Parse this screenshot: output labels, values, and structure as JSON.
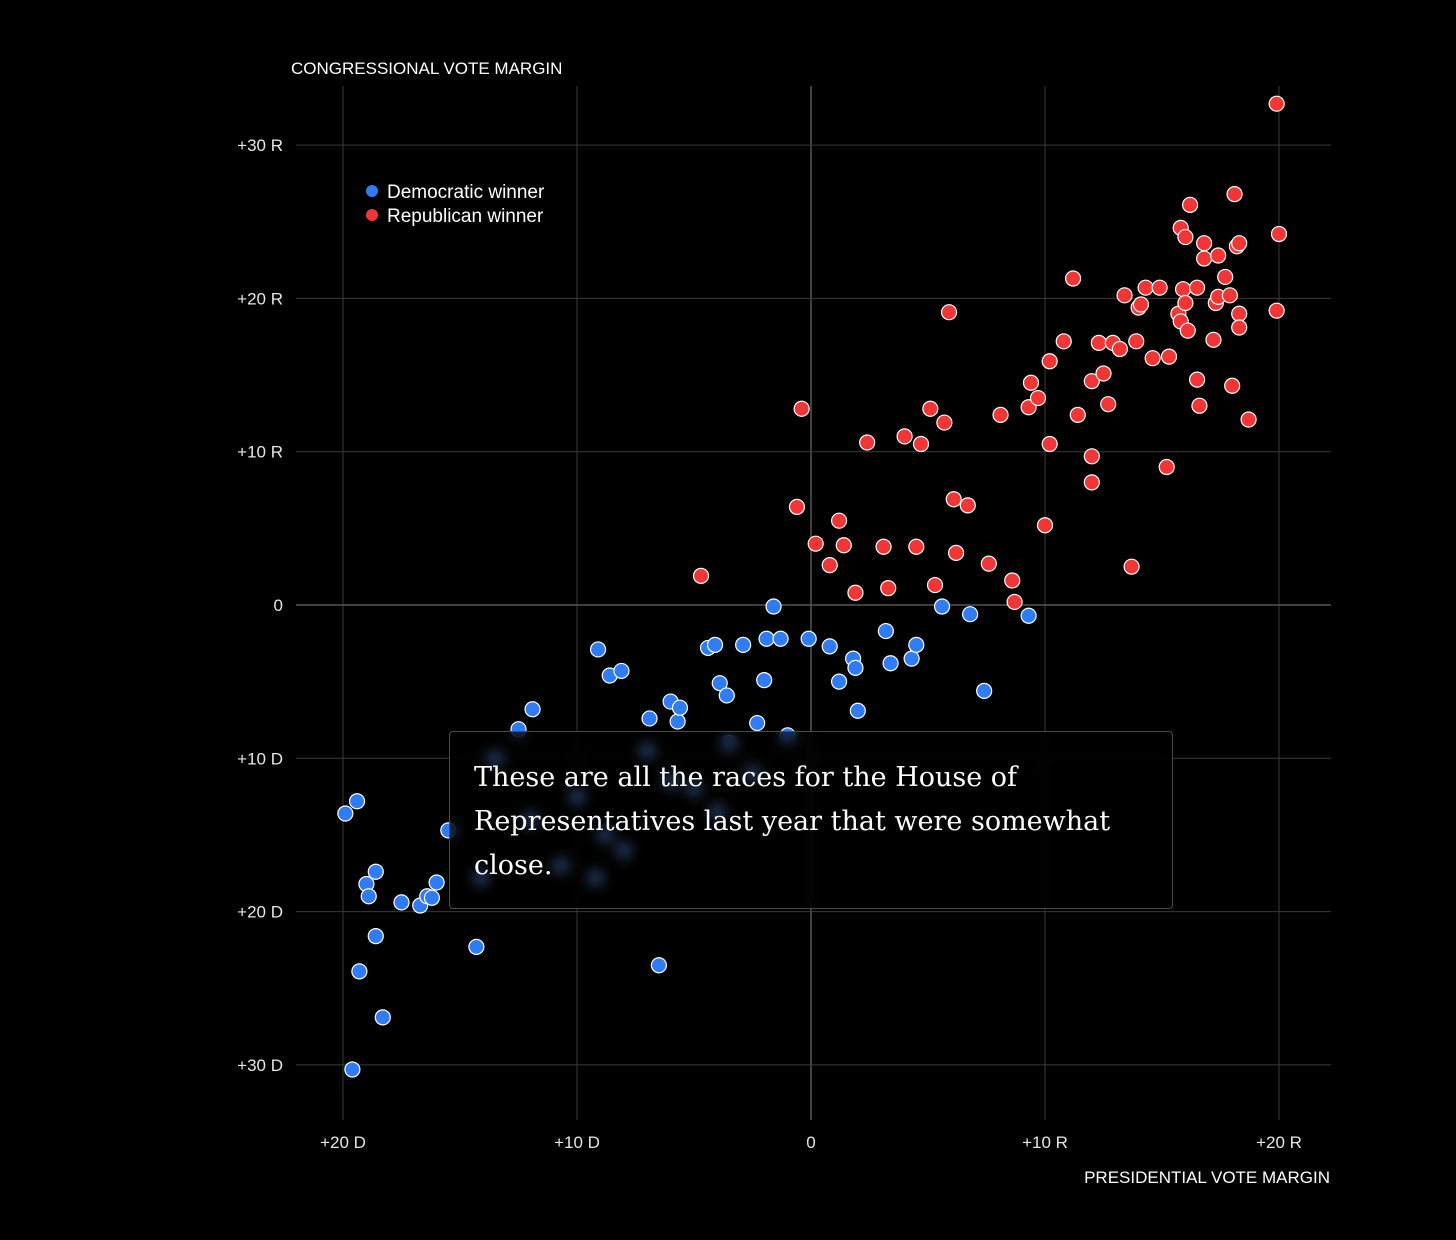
{
  "chart_data": {
    "type": "scatter",
    "title": "",
    "xlabel": "PRESIDENTIAL VOTE MARGIN",
    "ylabel": "CONGRESSIONAL VOTE MARGIN",
    "xlim": [
      -22,
      22
    ],
    "ylim": [
      -33,
      33
    ],
    "grid": true,
    "legend_position": "top-left",
    "x_ticks": [
      {
        "value": -20,
        "label": "+20 D"
      },
      {
        "value": -10,
        "label": "+10 D"
      },
      {
        "value": 0,
        "label": "0"
      },
      {
        "value": 10,
        "label": "+10 R"
      },
      {
        "value": 20,
        "label": "+20 R"
      }
    ],
    "y_ticks": [
      {
        "value": 30,
        "label": "+30 R"
      },
      {
        "value": 20,
        "label": "+20 R"
      },
      {
        "value": 10,
        "label": "+10 R"
      },
      {
        "value": 0,
        "label": "0"
      },
      {
        "value": -10,
        "label": "+10 D"
      },
      {
        "value": -20,
        "label": "+20 D"
      },
      {
        "value": -30,
        "label": "+30 D"
      }
    ],
    "series": [
      {
        "name": "Democratic winner",
        "color": "#2f7cf6",
        "points": [
          [
            -19.9,
            -13.6
          ],
          [
            -19.4,
            -12.8
          ],
          [
            -19.0,
            -18.2
          ],
          [
            -18.9,
            -19.0
          ],
          [
            -18.6,
            -17.4
          ],
          [
            -18.6,
            -21.6
          ],
          [
            -19.3,
            -23.9
          ],
          [
            -18.3,
            -26.9
          ],
          [
            -19.6,
            -30.3
          ],
          [
            -17.5,
            -19.4
          ],
          [
            -16.7,
            -19.6
          ],
          [
            -16.4,
            -19.0
          ],
          [
            -16.2,
            -19.1
          ],
          [
            -16.0,
            -18.1
          ],
          [
            -15.5,
            -14.7
          ],
          [
            -14.3,
            -22.3
          ],
          [
            -14.1,
            -17.8
          ],
          [
            -12.5,
            -8.1
          ],
          [
            -11.9,
            -6.8
          ],
          [
            -9.1,
            -2.9
          ],
          [
            -8.6,
            -4.6
          ],
          [
            -8.1,
            -4.3
          ],
          [
            -6.9,
            -7.4
          ],
          [
            -6.0,
            -6.3
          ],
          [
            -5.7,
            -7.6
          ],
          [
            -5.6,
            -6.7
          ],
          [
            -4.4,
            -2.8
          ],
          [
            -4.1,
            -2.6
          ],
          [
            -3.9,
            -5.1
          ],
          [
            -3.6,
            -5.9
          ],
          [
            -2.9,
            -2.6
          ],
          [
            -2.3,
            -7.7
          ],
          [
            -2.0,
            -4.9
          ],
          [
            -1.9,
            -2.2
          ],
          [
            -1.6,
            -0.1
          ],
          [
            -1.3,
            -2.2
          ],
          [
            -0.1,
            -2.2
          ],
          [
            0.8,
            -2.7
          ],
          [
            1.2,
            -5.0
          ],
          [
            1.8,
            -3.5
          ],
          [
            1.9,
            -4.1
          ],
          [
            2.0,
            -6.9
          ],
          [
            3.2,
            -1.7
          ],
          [
            3.4,
            -3.8
          ],
          [
            4.3,
            -3.5
          ],
          [
            4.5,
            -2.6
          ],
          [
            5.6,
            -0.1
          ],
          [
            6.8,
            -0.6
          ],
          [
            7.4,
            -5.6
          ],
          [
            9.3,
            -0.7
          ],
          [
            -9.2,
            -17.8
          ],
          [
            -6.5,
            -23.5
          ],
          [
            -10.7,
            -17.0
          ],
          [
            -8.0,
            -16.0
          ],
          [
            -12.0,
            -14.0
          ],
          [
            -7.0,
            -9.5
          ],
          [
            -5.0,
            -12.0
          ],
          [
            -3.5,
            -9.0
          ],
          [
            -1.0,
            -8.5
          ],
          [
            -6.0,
            -11.5
          ],
          [
            -4.0,
            -13.5
          ],
          [
            -2.5,
            -11.0
          ],
          [
            -10.0,
            -12.5
          ],
          [
            -13.5,
            -10.0
          ],
          [
            -8.8,
            -15.0
          ]
        ]
      },
      {
        "name": "Republican winner",
        "color": "#f23535",
        "points": [
          [
            -4.7,
            1.9
          ],
          [
            -0.6,
            6.4
          ],
          [
            -0.4,
            12.8
          ],
          [
            0.2,
            4.0
          ],
          [
            0.8,
            2.6
          ],
          [
            1.2,
            5.5
          ],
          [
            1.4,
            3.9
          ],
          [
            1.9,
            0.8
          ],
          [
            2.4,
            10.6
          ],
          [
            3.1,
            3.8
          ],
          [
            3.3,
            1.1
          ],
          [
            4.0,
            11.0
          ],
          [
            4.5,
            3.8
          ],
          [
            4.7,
            10.5
          ],
          [
            5.1,
            12.8
          ],
          [
            5.3,
            1.3
          ],
          [
            5.7,
            11.9
          ],
          [
            5.9,
            19.1
          ],
          [
            6.1,
            6.9
          ],
          [
            6.2,
            3.4
          ],
          [
            6.7,
            6.5
          ],
          [
            7.6,
            2.7
          ],
          [
            8.1,
            12.4
          ],
          [
            8.6,
            1.6
          ],
          [
            8.7,
            0.2
          ],
          [
            9.3,
            12.9
          ],
          [
            9.4,
            14.5
          ],
          [
            9.7,
            13.5
          ],
          [
            10.0,
            5.2
          ],
          [
            10.2,
            10.5
          ],
          [
            10.2,
            15.9
          ],
          [
            10.8,
            17.2
          ],
          [
            11.2,
            21.3
          ],
          [
            11.4,
            12.4
          ],
          [
            12.0,
            14.6
          ],
          [
            12.0,
            9.7
          ],
          [
            12.0,
            8.0
          ],
          [
            12.3,
            17.1
          ],
          [
            12.5,
            15.1
          ],
          [
            12.7,
            13.1
          ],
          [
            12.9,
            17.1
          ],
          [
            13.2,
            16.7
          ],
          [
            13.4,
            20.2
          ],
          [
            13.7,
            2.5
          ],
          [
            13.9,
            17.2
          ],
          [
            14.0,
            19.4
          ],
          [
            14.1,
            19.6
          ],
          [
            14.3,
            20.7
          ],
          [
            14.6,
            16.1
          ],
          [
            14.9,
            20.7
          ],
          [
            15.2,
            9.0
          ],
          [
            15.3,
            16.2
          ],
          [
            15.7,
            19.0
          ],
          [
            15.8,
            18.5
          ],
          [
            15.8,
            24.6
          ],
          [
            15.9,
            20.6
          ],
          [
            16.0,
            24.0
          ],
          [
            16.0,
            19.7
          ],
          [
            16.1,
            17.9
          ],
          [
            16.2,
            26.1
          ],
          [
            16.5,
            20.7
          ],
          [
            16.5,
            14.7
          ],
          [
            16.6,
            13.0
          ],
          [
            16.8,
            22.6
          ],
          [
            16.8,
            23.6
          ],
          [
            17.2,
            17.3
          ],
          [
            17.3,
            19.7
          ],
          [
            17.4,
            22.8
          ],
          [
            17.4,
            20.1
          ],
          [
            17.7,
            21.4
          ],
          [
            17.9,
            20.2
          ],
          [
            18.0,
            14.3
          ],
          [
            18.1,
            26.8
          ],
          [
            18.2,
            23.4
          ],
          [
            18.3,
            23.6
          ],
          [
            18.3,
            19.0
          ],
          [
            18.3,
            18.1
          ],
          [
            18.7,
            12.1
          ],
          [
            19.9,
            19.2
          ],
          [
            20.0,
            24.2
          ],
          [
            19.9,
            32.7
          ]
        ]
      }
    ],
    "annotation": "These are all the races for the House of Representatives last year that were somewhat close."
  }
}
